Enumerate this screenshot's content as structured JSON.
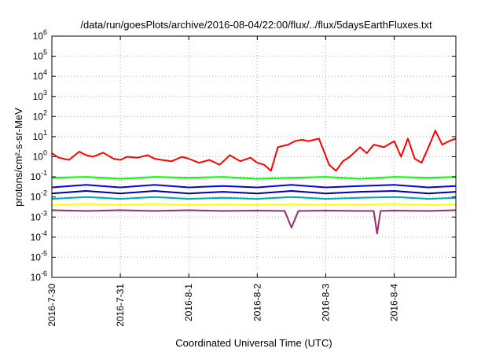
{
  "chart_data": {
    "type": "line",
    "title": "/data/run/goesPlots/archive/2016-08-04/22:00/flux/../flux/5daysEarthFluxes.txt",
    "xlabel": "Coordinated Universal Time (UTC)",
    "ylabel": "protons/cm²-s-sr-MeV",
    "y_scale": "log",
    "ylim": [
      1e-06,
      1000000.0
    ],
    "y_ticks": [
      {
        "value": 1e-06,
        "base": "10",
        "exp": "-6"
      },
      {
        "value": 1e-05,
        "base": "10",
        "exp": "-5"
      },
      {
        "value": 0.0001,
        "base": "10",
        "exp": "-4"
      },
      {
        "value": 0.001,
        "base": "10",
        "exp": "-3"
      },
      {
        "value": 0.01,
        "base": "10",
        "exp": "-2"
      },
      {
        "value": 0.1,
        "base": "10",
        "exp": "-1"
      },
      {
        "value": 1,
        "base": "10",
        "exp": "0"
      },
      {
        "value": 10.0,
        "base": "10",
        "exp": "1"
      },
      {
        "value": 100.0,
        "base": "10",
        "exp": "2"
      },
      {
        "value": 1000.0,
        "base": "10",
        "exp": "3"
      },
      {
        "value": 10000.0,
        "base": "10",
        "exp": "4"
      },
      {
        "value": 100000.0,
        "base": "10",
        "exp": "5"
      },
      {
        "value": 1000000.0,
        "base": "10",
        "exp": "6"
      }
    ],
    "x_ticks": [
      "2016-7-30",
      "2016-7-31",
      "2016-8-1",
      "2016-8-2",
      "2016-8-3",
      "2016-8-4"
    ],
    "xlim_days": [
      0,
      5.9
    ],
    "grid": true,
    "series": [
      {
        "color": "#ff0000",
        "x": [
          0,
          0.1,
          0.25,
          0.4,
          0.5,
          0.6,
          0.75,
          0.9,
          1.0,
          1.1,
          1.25,
          1.4,
          1.5,
          1.6,
          1.75,
          1.9,
          2.0,
          2.15,
          2.3,
          2.45,
          2.6,
          2.75,
          2.9,
          3.0,
          3.1,
          3.2,
          3.3,
          3.45,
          3.55,
          3.65,
          3.75,
          3.9,
          4.05,
          4.15,
          4.25,
          4.35,
          4.5,
          4.6,
          4.7,
          4.85,
          5.0,
          5.1,
          5.2,
          5.3,
          5.4,
          5.5,
          5.6,
          5.7,
          5.8,
          5.9
        ],
        "values": [
          1.5,
          0.9,
          0.7,
          1.8,
          1.2,
          1.0,
          1.6,
          0.8,
          0.7,
          1.0,
          0.9,
          1.2,
          0.8,
          0.7,
          0.6,
          1.0,
          0.8,
          0.5,
          0.7,
          0.4,
          1.2,
          0.6,
          0.9,
          0.5,
          0.4,
          0.2,
          3.0,
          4.0,
          6.0,
          7.0,
          6.0,
          8.0,
          0.4,
          0.2,
          0.6,
          1.0,
          3.0,
          1.5,
          4.0,
          3.0,
          6.0,
          1.0,
          8.0,
          0.8,
          0.5,
          3.0,
          20.0,
          4.0,
          6.0,
          8.0
        ]
      },
      {
        "color": "#00ff00",
        "x": [
          0,
          0.5,
          1.0,
          1.5,
          2.0,
          2.5,
          3.0,
          3.5,
          4.0,
          4.5,
          5.0,
          5.5,
          5.9
        ],
        "values": [
          0.09,
          0.1,
          0.08,
          0.1,
          0.09,
          0.1,
          0.08,
          0.09,
          0.1,
          0.08,
          0.1,
          0.09,
          0.1
        ]
      },
      {
        "color": "#0000ff",
        "x": [
          0,
          0.5,
          1.0,
          1.5,
          2.0,
          2.5,
          3.0,
          3.5,
          4.0,
          4.5,
          5.0,
          5.5,
          5.9
        ],
        "values": [
          0.03,
          0.04,
          0.03,
          0.04,
          0.03,
          0.035,
          0.03,
          0.04,
          0.03,
          0.035,
          0.04,
          0.03,
          0.035
        ]
      },
      {
        "color": "#0000aa",
        "x": [
          0,
          0.5,
          1.0,
          1.5,
          2.0,
          2.5,
          3.0,
          3.5,
          4.0,
          4.5,
          5.0,
          5.5,
          5.9
        ],
        "values": [
          0.015,
          0.02,
          0.015,
          0.02,
          0.015,
          0.018,
          0.015,
          0.02,
          0.015,
          0.018,
          0.02,
          0.015,
          0.018
        ]
      },
      {
        "color": "#00aaaa",
        "x": [
          0,
          0.5,
          1.0,
          1.5,
          2.0,
          2.5,
          3.0,
          3.5,
          4.0,
          4.5,
          5.0,
          5.5,
          5.9
        ],
        "values": [
          0.008,
          0.01,
          0.008,
          0.01,
          0.008,
          0.009,
          0.008,
          0.01,
          0.008,
          0.009,
          0.01,
          0.008,
          0.009
        ]
      },
      {
        "color": "#ffff00",
        "x": [
          0,
          0.5,
          1.0,
          1.5,
          2.0,
          2.5,
          3.0,
          3.5,
          4.0,
          4.5,
          5.0,
          5.5,
          5.9
        ],
        "values": [
          0.004,
          0.0045,
          0.004,
          0.0045,
          0.004,
          0.0042,
          0.004,
          0.0044,
          0.004,
          0.0042,
          0.0045,
          0.004,
          0.0042
        ]
      },
      {
        "color": "#9b2a6e",
        "x": [
          0,
          0.5,
          1.0,
          1.5,
          2.0,
          2.5,
          3.0,
          3.4,
          3.5,
          3.6,
          4.0,
          4.5,
          4.7,
          4.75,
          4.8,
          5.0,
          5.5,
          5.9
        ],
        "values": [
          0.0022,
          0.002,
          0.0022,
          0.002,
          0.0022,
          0.002,
          0.0021,
          0.002,
          0.0003,
          0.002,
          0.0021,
          0.002,
          0.002,
          0.00015,
          0.002,
          0.0021,
          0.002,
          0.0022
        ]
      }
    ]
  }
}
